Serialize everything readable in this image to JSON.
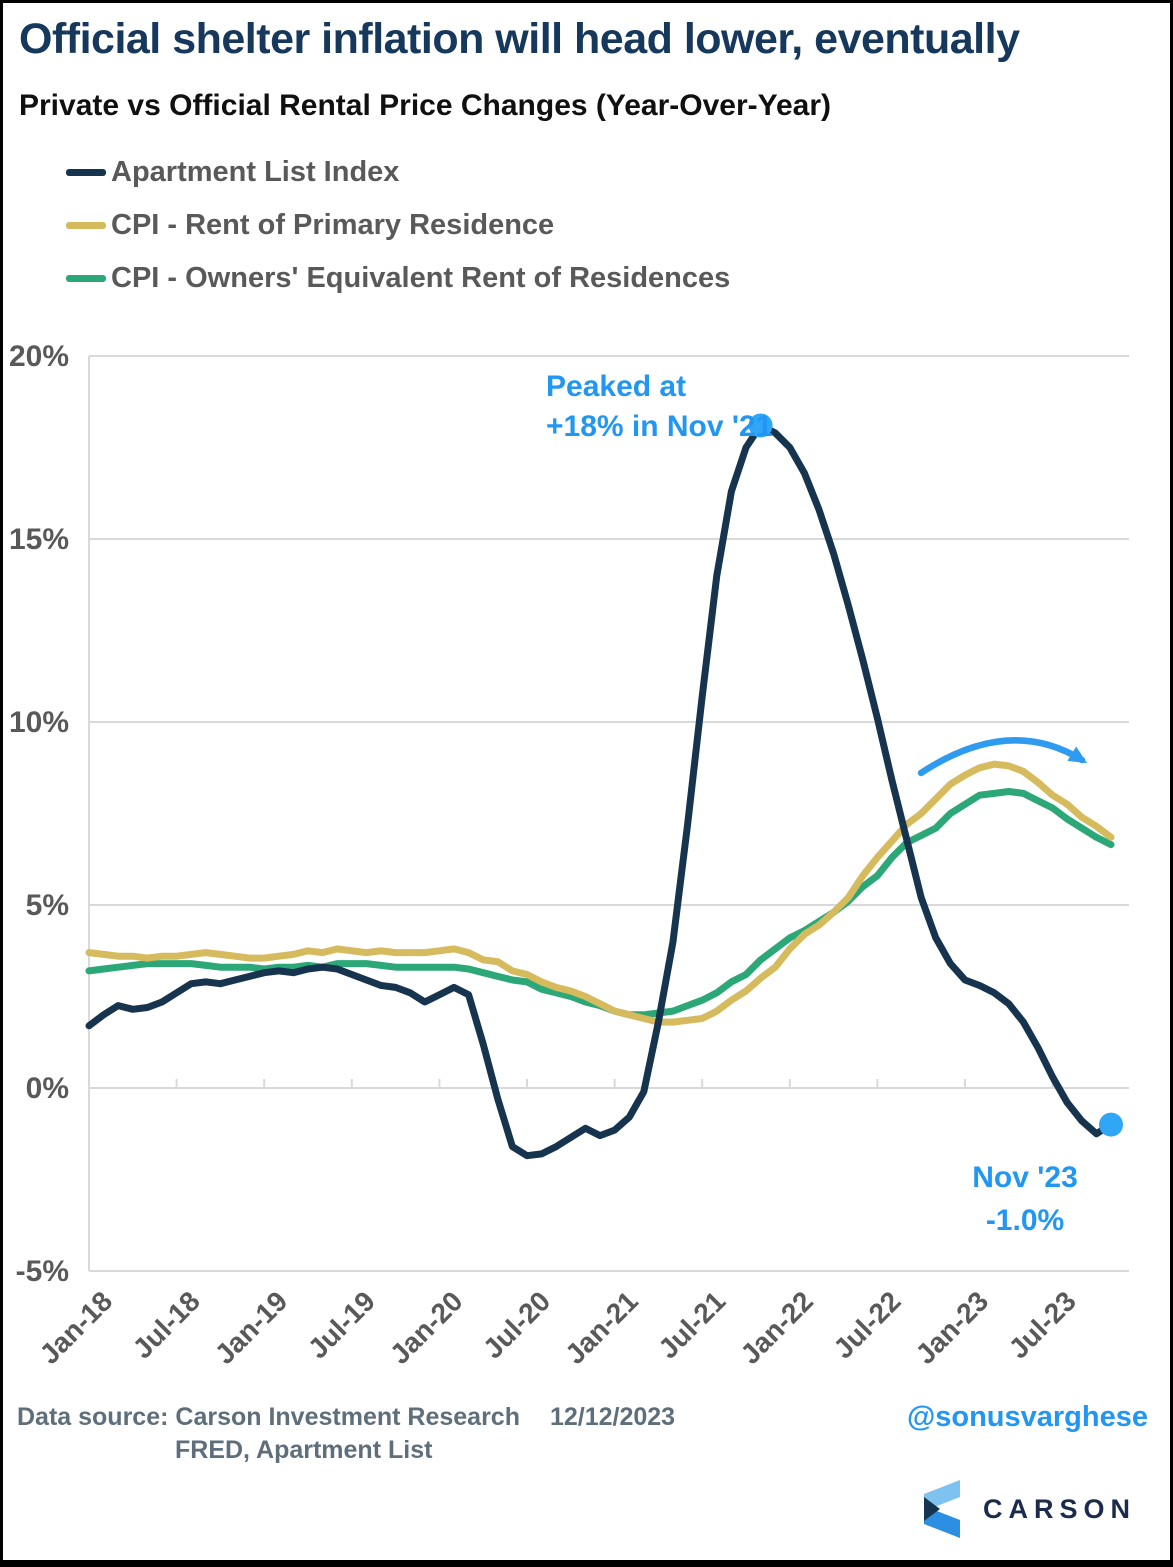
{
  "header": {
    "title": "Official shelter inflation will head lower, eventually",
    "subtitle": "Private vs Official Rental Price Changes (Year-Over-Year)"
  },
  "chart_data": {
    "type": "line",
    "title": "Private vs Official Rental Price Changes (Year-Over-Year)",
    "ylim": [
      -5,
      20
    ],
    "grid": "horizontal",
    "legend_position": "top-left",
    "y_ticks": [
      20,
      15,
      10,
      5,
      0,
      -5
    ],
    "y_tick_labels": [
      "20%",
      "15%",
      "10%",
      "5%",
      "0%",
      "-5%"
    ],
    "x_tick_labels": [
      "Jan-18",
      "Jul-18",
      "Jan-19",
      "Jul-19",
      "Jan-20",
      "Jul-20",
      "Jan-21",
      "Jul-21",
      "Jan-22",
      "Jul-22",
      "Jan-23",
      "Jul-23"
    ],
    "x": [
      "Jan-18",
      "Feb-18",
      "Mar-18",
      "Apr-18",
      "May-18",
      "Jun-18",
      "Jul-18",
      "Aug-18",
      "Sep-18",
      "Oct-18",
      "Nov-18",
      "Dec-18",
      "Jan-19",
      "Feb-19",
      "Mar-19",
      "Apr-19",
      "May-19",
      "Jun-19",
      "Jul-19",
      "Aug-19",
      "Sep-19",
      "Oct-19",
      "Nov-19",
      "Dec-19",
      "Jan-20",
      "Feb-20",
      "Mar-20",
      "Apr-20",
      "May-20",
      "Jun-20",
      "Jul-20",
      "Aug-20",
      "Sep-20",
      "Oct-20",
      "Nov-20",
      "Dec-20",
      "Jan-21",
      "Feb-21",
      "Mar-21",
      "Apr-21",
      "May-21",
      "Jun-21",
      "Jul-21",
      "Aug-21",
      "Sep-21",
      "Oct-21",
      "Nov-21",
      "Dec-21",
      "Jan-22",
      "Feb-22",
      "Mar-22",
      "Apr-22",
      "May-22",
      "Jun-22",
      "Jul-22",
      "Aug-22",
      "Sep-22",
      "Oct-22",
      "Nov-22",
      "Dec-22",
      "Jan-23",
      "Feb-23",
      "Mar-23",
      "Apr-23",
      "May-23",
      "Jun-23",
      "Jul-23",
      "Aug-23",
      "Sep-23",
      "Oct-23",
      "Nov-23"
    ],
    "series": [
      {
        "name": "Apartment List Index",
        "color": "#17344F",
        "values": [
          1.7,
          2.0,
          2.25,
          2.15,
          2.2,
          2.35,
          2.6,
          2.85,
          2.9,
          2.85,
          2.95,
          3.05,
          3.15,
          3.2,
          3.15,
          3.25,
          3.3,
          3.25,
          3.1,
          2.95,
          2.8,
          2.75,
          2.6,
          2.35,
          2.55,
          2.75,
          2.55,
          1.2,
          -0.3,
          -1.6,
          -1.85,
          -1.8,
          -1.6,
          -1.35,
          -1.1,
          -1.3,
          -1.15,
          -0.8,
          -0.1,
          1.8,
          4.0,
          7.2,
          10.7,
          14.0,
          16.3,
          17.5,
          18.1,
          17.9,
          17.5,
          16.8,
          15.8,
          14.6,
          13.2,
          11.7,
          10.1,
          8.4,
          6.8,
          5.2,
          4.1,
          3.4,
          2.95,
          2.8,
          2.6,
          2.3,
          1.8,
          1.1,
          0.3,
          -0.4,
          -0.9,
          -1.25,
          -1.0
        ]
      },
      {
        "name": "CPI - Rent of Primary Residence",
        "color": "#D6BA5E",
        "values": [
          3.7,
          3.65,
          3.6,
          3.6,
          3.55,
          3.6,
          3.6,
          3.65,
          3.7,
          3.65,
          3.6,
          3.55,
          3.55,
          3.6,
          3.65,
          3.75,
          3.7,
          3.8,
          3.75,
          3.7,
          3.75,
          3.7,
          3.7,
          3.7,
          3.75,
          3.8,
          3.7,
          3.5,
          3.45,
          3.2,
          3.1,
          2.9,
          2.75,
          2.65,
          2.5,
          2.3,
          2.1,
          2.0,
          1.9,
          1.8,
          1.8,
          1.85,
          1.9,
          2.1,
          2.4,
          2.65,
          3.0,
          3.3,
          3.8,
          4.2,
          4.45,
          4.8,
          5.2,
          5.8,
          6.3,
          6.75,
          7.2,
          7.5,
          7.9,
          8.3,
          8.55,
          8.75,
          8.85,
          8.8,
          8.65,
          8.35,
          8.0,
          7.75,
          7.4,
          7.15,
          6.85
        ]
      },
      {
        "name": "CPI - Owners' Equivalent Rent of Residences",
        "color": "#2CA878",
        "values": [
          3.2,
          3.25,
          3.3,
          3.35,
          3.4,
          3.4,
          3.4,
          3.4,
          3.35,
          3.3,
          3.3,
          3.3,
          3.25,
          3.3,
          3.3,
          3.35,
          3.3,
          3.4,
          3.4,
          3.4,
          3.35,
          3.3,
          3.3,
          3.3,
          3.3,
          3.3,
          3.25,
          3.15,
          3.05,
          2.95,
          2.9,
          2.7,
          2.6,
          2.5,
          2.35,
          2.25,
          2.1,
          2.0,
          2.0,
          2.05,
          2.1,
          2.25,
          2.4,
          2.6,
          2.9,
          3.1,
          3.5,
          3.8,
          4.1,
          4.3,
          4.55,
          4.8,
          5.1,
          5.5,
          5.8,
          6.3,
          6.7,
          6.9,
          7.1,
          7.5,
          7.75,
          8.0,
          8.05,
          8.1,
          8.05,
          7.85,
          7.65,
          7.35,
          7.1,
          6.85,
          6.65
        ]
      }
    ],
    "markers": [
      {
        "month": "Nov-21",
        "value": 18.1
      },
      {
        "month": "Nov-23",
        "value": -1.0
      }
    ],
    "annotations": {
      "peak": {
        "lines": [
          "Peaked at",
          "+18% in Nov '21"
        ],
        "marker": {
          "month": "Nov-21",
          "value": 18.1
        }
      },
      "end": {
        "lines": [
          "Nov '23",
          "-1.0%"
        ],
        "marker": {
          "month": "Nov-23",
          "value": -1.0
        }
      },
      "arrow": {
        "from": {
          "month": "Oct-22",
          "value": 8.6
        },
        "apex": {
          "month": "Apr-23",
          "value": 10.2
        },
        "to": {
          "month": "Sep-23",
          "value": 8.95
        }
      }
    },
    "colors": {
      "grid": "#D9D9D9",
      "axis_text": "#595959",
      "annotation_blue": "#2196F3",
      "marker_blue": "#2FA7F6",
      "arrow_blue": "#2F9BF0"
    }
  },
  "footer": {
    "source_line1": "Data source: Carson Investment Research",
    "date": "12/12/2023",
    "source_line2": "FRED, Apartment List",
    "handle": "@sonusvarghese",
    "logo_text": "CARSON"
  }
}
